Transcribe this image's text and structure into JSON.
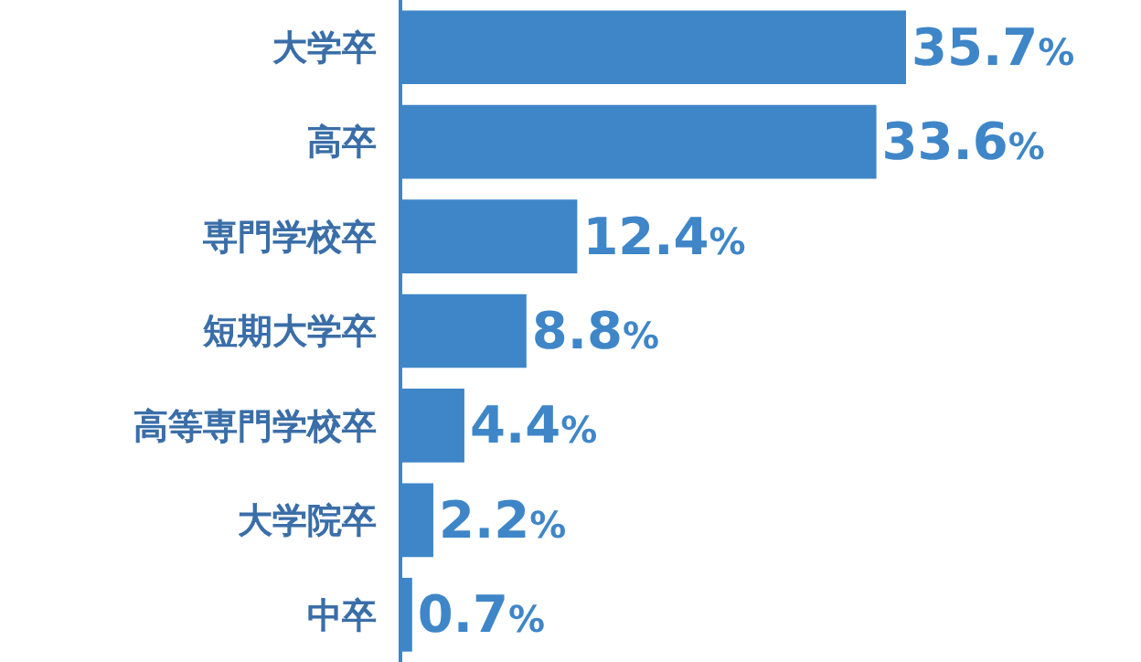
{
  "chart_data": {
    "type": "bar",
    "orientation": "horizontal",
    "categories": [
      "大学卒",
      "高卒",
      "専門学校卒",
      "短期大学卒",
      "高等専門学校卒",
      "大学院卒",
      "中卒"
    ],
    "values": [
      35.7,
      33.6,
      12.4,
      8.8,
      4.4,
      2.2,
      0.7
    ],
    "value_labels": [
      "35.7%",
      "33.6%",
      "12.4%",
      "8.8%",
      "4.4%",
      "2.2%",
      "0.7%"
    ],
    "color": "#3f86c8",
    "tick_labels": "y",
    "legend": false
  }
}
